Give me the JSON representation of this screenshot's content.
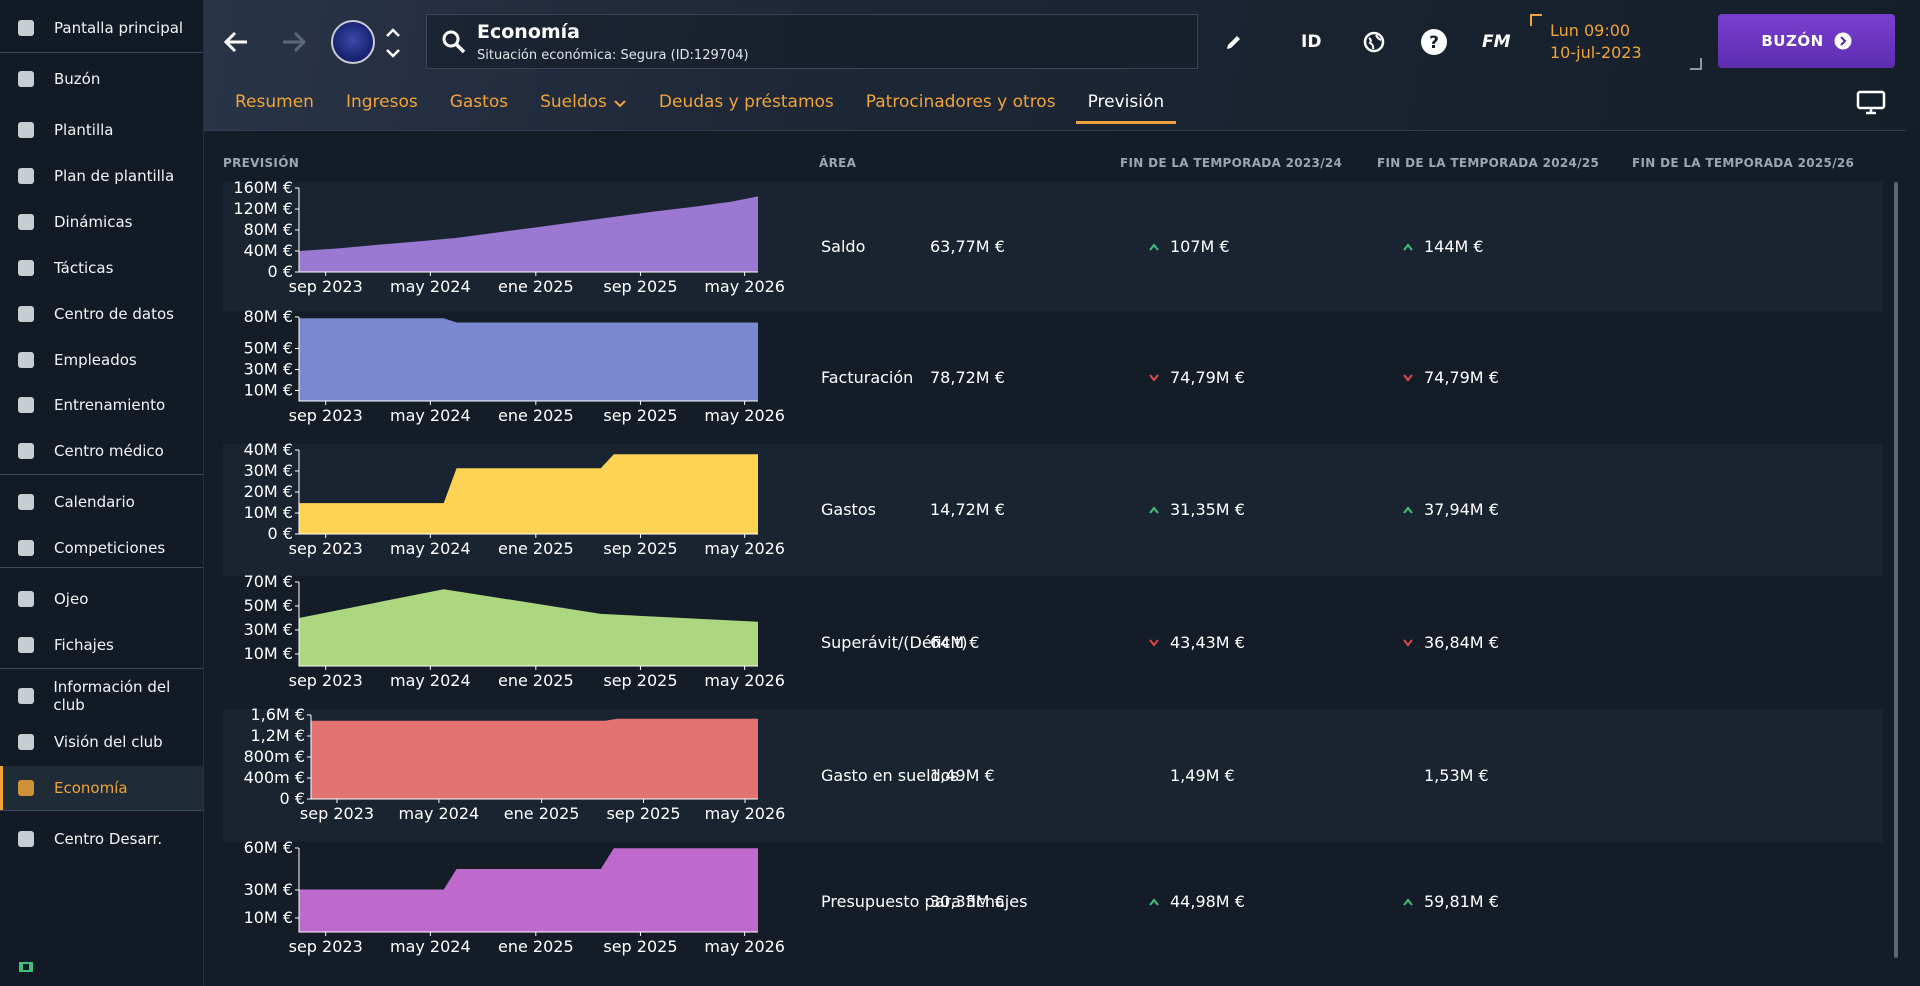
{
  "sidebar": {
    "items": [
      {
        "label": "Pantalla principal",
        "icon": "home-icon"
      },
      {
        "label": "Buzón",
        "icon": "inbox-icon"
      },
      {
        "label": "Plantilla",
        "icon": "shirt-icon"
      },
      {
        "label": "Plan de plantilla",
        "icon": "clipboard-icon"
      },
      {
        "label": "Dinámicas",
        "icon": "dynamics-icon"
      },
      {
        "label": "Tácticas",
        "icon": "tactics-icon"
      },
      {
        "label": "Centro de datos",
        "icon": "data-hub-icon"
      },
      {
        "label": "Empleados",
        "icon": "staff-icon"
      },
      {
        "label": "Entrenamiento",
        "icon": "training-icon"
      },
      {
        "label": "Centro médico",
        "icon": "medical-icon"
      },
      {
        "label": "Calendario",
        "icon": "calendar-icon"
      },
      {
        "label": "Competiciones",
        "icon": "trophy-icon"
      },
      {
        "label": "Ojeo",
        "icon": "scouting-icon"
      },
      {
        "label": "Fichajes",
        "icon": "transfers-icon"
      },
      {
        "label": "Información del club",
        "icon": "shield-icon"
      },
      {
        "label": "Visión del club",
        "icon": "briefcase-icon"
      },
      {
        "label": "Economía",
        "icon": "money-icon"
      },
      {
        "label": "Centro Desarr.",
        "icon": "development-icon"
      }
    ],
    "active": "Economía"
  },
  "header": {
    "title": "Economía",
    "subtitle": "Situación económica: Segura (ID:129704)",
    "id_label": "ID",
    "fm_label": "FM",
    "time": "Lun 09:00",
    "date": "10-jul-2023",
    "inbox_label": "BUZÓN"
  },
  "tabs": [
    {
      "label": "Resumen"
    },
    {
      "label": "Ingresos"
    },
    {
      "label": "Gastos"
    },
    {
      "label": "Sueldos"
    },
    {
      "label": "Deudas y préstamos"
    },
    {
      "label": "Patrocinadores y otros"
    },
    {
      "label": "Previsión"
    }
  ],
  "table": {
    "headers": {
      "forecast": "PREVISIÓN",
      "area": "ÁREA",
      "s1": "FIN DE LA TEMPORADA 2023/24",
      "s2": "FIN DE LA TEMPORADA 2024/25",
      "s3": "FIN DE LA TEMPORADA 2025/26"
    },
    "rows": [
      {
        "area": "Saldo",
        "v1": "63,77M €",
        "v2": "107M €",
        "v3": "144M €",
        "t2": "up",
        "t3": "up"
      },
      {
        "area": "Facturación",
        "v1": "78,72M €",
        "v2": "74,79M €",
        "v3": "74,79M €",
        "t2": "down",
        "t3": "down"
      },
      {
        "area": "Gastos",
        "v1": "14,72M €",
        "v2": "31,35M €",
        "v3": "37,94M €",
        "t2": "up",
        "t3": "up"
      },
      {
        "area": "Superávit/(Déficit)",
        "v1": "64M €",
        "v2": "43,43M €",
        "v3": "36,84M €",
        "t2": "down",
        "t3": "down"
      },
      {
        "area": "Gasto en sueldos",
        "v1": "1,49M €",
        "v2": "1,49M €",
        "v3": "1,53M €",
        "t2": "none",
        "t3": "none"
      },
      {
        "area": "Presupuesto para fichajes",
        "v1": "30,33M €",
        "v2": "44,98M €",
        "v3": "59,81M €",
        "t2": "up",
        "t3": "up"
      }
    ]
  },
  "chart_data": [
    {
      "type": "area",
      "title": "Saldo",
      "color": "#9b79d2",
      "x": [
        "2023-07",
        "2023-10",
        "2024-01",
        "2024-04",
        "2024-07",
        "2024-10",
        "2025-01",
        "2025-04",
        "2025-07",
        "2025-10",
        "2026-01",
        "2026-04",
        "2026-06"
      ],
      "values": [
        40,
        45,
        52,
        58,
        65,
        75,
        85,
        95,
        105,
        115,
        124,
        134,
        144
      ],
      "ylim": [
        0,
        160
      ],
      "yticks": [
        "160M €",
        "120M €",
        "80M €",
        "40M €",
        "0 €"
      ],
      "ytick_values": [
        160,
        120,
        80,
        40,
        0
      ],
      "xticks": [
        "sep 2023",
        "may 2024",
        "ene 2025",
        "sep 2025",
        "may 2026"
      ]
    },
    {
      "type": "area",
      "title": "Facturación",
      "color": "#7a88cf",
      "x": [
        "2023-07",
        "2024-06",
        "2024-07",
        "2026-06"
      ],
      "values": [
        78.72,
        78.72,
        74.79,
        74.79
      ],
      "ylim": [
        0,
        80
      ],
      "yticks": [
        "80M €",
        "50M €",
        "30M €",
        "10M €"
      ],
      "ytick_values": [
        80,
        50,
        30,
        10
      ],
      "xticks": [
        "sep 2023",
        "may 2024",
        "ene 2025",
        "sep 2025",
        "may 2026"
      ]
    },
    {
      "type": "area",
      "title": "Gastos",
      "color": "#fdd354",
      "x": [
        "2023-07",
        "2024-06",
        "2024-07",
        "2025-06",
        "2025-07",
        "2026-06"
      ],
      "values": [
        14.72,
        14.72,
        31.35,
        31.35,
        37.94,
        37.94
      ],
      "ylim": [
        0,
        40
      ],
      "yticks": [
        "40M €",
        "30M €",
        "20M €",
        "10M €",
        "0 €"
      ],
      "ytick_values": [
        40,
        30,
        20,
        10,
        0
      ],
      "xticks": [
        "sep 2023",
        "may 2024",
        "ene 2025",
        "sep 2025",
        "may 2026"
      ]
    },
    {
      "type": "area",
      "title": "Superávit/(Déficit)",
      "color": "#acd67f",
      "x": [
        "2023-07",
        "2024-06",
        "2025-06",
        "2026-06"
      ],
      "values": [
        40,
        64,
        43.43,
        36.84
      ],
      "ylim": [
        0,
        70
      ],
      "yticks": [
        "70M €",
        "50M €",
        "30M €",
        "10M €"
      ],
      "ytick_values": [
        70,
        50,
        30,
        10
      ],
      "xticks": [
        "sep 2023",
        "may 2024",
        "ene 2025",
        "sep 2025",
        "may 2026"
      ]
    },
    {
      "type": "area",
      "title": "Gasto en sueldos",
      "color": "#e37272",
      "x": [
        "2023-07",
        "2025-06",
        "2025-07",
        "2026-06"
      ],
      "values": [
        1.49,
        1.49,
        1.53,
        1.53
      ],
      "ylim": [
        0,
        1.6
      ],
      "yticks": [
        "1,6M €",
        "1,2M €",
        "800m €",
        "400m €",
        "0 €"
      ],
      "ytick_values": [
        1.6,
        1.2,
        0.8,
        0.4,
        0
      ],
      "xticks": [
        "sep 2023",
        "may 2024",
        "ene 2025",
        "sep 2025",
        "may 2026"
      ]
    },
    {
      "type": "area",
      "title": "Presupuesto para fichajes",
      "color": "#be69cc",
      "x": [
        "2023-07",
        "2024-06",
        "2024-07",
        "2025-06",
        "2025-07",
        "2026-06"
      ],
      "values": [
        30.33,
        30.33,
        44.98,
        44.98,
        59.81,
        59.81
      ],
      "ylim": [
        0,
        60
      ],
      "yticks": [
        "60M €",
        "30M €",
        "10M €"
      ],
      "ytick_values": [
        60,
        30,
        10
      ],
      "xticks": [
        "sep 2023",
        "may 2024",
        "ene 2025",
        "sep 2025",
        "may 2026"
      ]
    }
  ]
}
